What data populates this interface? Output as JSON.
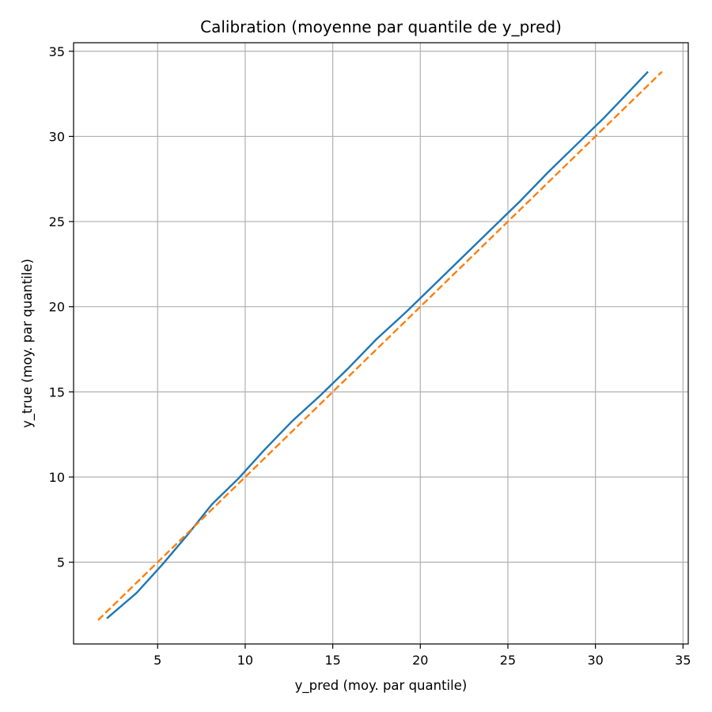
{
  "chart_data": {
    "type": "line",
    "title": "Calibration (moyenne par quantile de y_pred)",
    "xlabel": "y_pred (moy. par quantile)",
    "ylabel": "y_true (moy. par quantile)",
    "xlim": [
      0.2,
      35.3
    ],
    "ylim": [
      0.2,
      35.5
    ],
    "x_ticks": [
      5,
      10,
      15,
      20,
      25,
      30,
      35
    ],
    "y_ticks": [
      5,
      10,
      15,
      20,
      25,
      30,
      35
    ],
    "x_tick_labels": [
      "5",
      "10",
      "15",
      "20",
      "25",
      "30",
      "35"
    ],
    "y_tick_labels": [
      "5",
      "10",
      "15",
      "20",
      "25",
      "30",
      "35"
    ],
    "grid": true,
    "series": [
      {
        "color": "#1f77b4",
        "style": "solid",
        "x": [
          2.1,
          3.8,
          5.3,
          6.7,
          8.1,
          9.6,
          11.1,
          12.7,
          14.3,
          15.9,
          17.5,
          19.2,
          20.8,
          22.4,
          24.1,
          25.7,
          27.3,
          28.9,
          30.5,
          31.8,
          33.0
        ],
        "y": [
          1.7,
          3.2,
          4.9,
          6.6,
          8.4,
          9.9,
          11.6,
          13.3,
          14.8,
          16.4,
          18.1,
          19.7,
          21.3,
          22.9,
          24.6,
          26.2,
          27.9,
          29.5,
          31.1,
          32.5,
          33.8
        ]
      },
      {
        "color": "#ff7f0e",
        "style": "dashed",
        "x": [
          1.6,
          33.8
        ],
        "y": [
          1.6,
          33.8
        ]
      }
    ]
  }
}
